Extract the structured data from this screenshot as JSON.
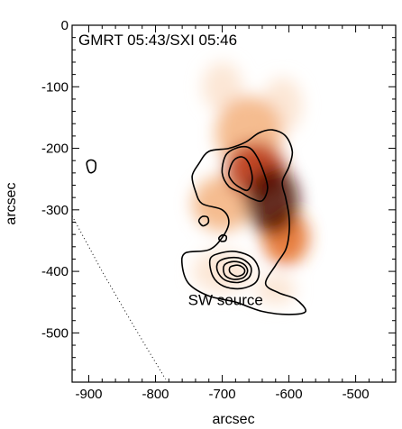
{
  "chart_data": {
    "type": "heatmap",
    "title": "GMRT 05:43/SXI 05:46",
    "xlabel": "arcsec",
    "ylabel": "arcsec",
    "xlim": [
      -925,
      -440
    ],
    "ylim": [
      -580,
      0
    ],
    "x_ticks": [
      -900,
      -800,
      -700,
      -600,
      -500
    ],
    "y_ticks": [
      0,
      -100,
      -200,
      -300,
      -400,
      -500
    ],
    "x_tick_labels": [
      "-900",
      "-800",
      "-700",
      "-600",
      "-500"
    ],
    "y_tick_labels": [
      "0",
      "-100",
      "-200",
      "-300",
      "-400",
      "-500"
    ],
    "annotations": [
      {
        "text": "SW source",
        "x": -695,
        "y": -455
      }
    ],
    "colormap": [
      "#ffffff",
      "#fbe3cf",
      "#f3b07d",
      "#e46a22",
      "#b8310b",
      "#4a0a00"
    ],
    "heatmap_blobs": [
      {
        "cx": -625,
        "cy": -285,
        "rx": 40,
        "ry": 55,
        "intensity": 1.0
      },
      {
        "cx": -650,
        "cy": -235,
        "rx": 45,
        "ry": 45,
        "intensity": 0.8
      },
      {
        "cx": -605,
        "cy": -345,
        "rx": 35,
        "ry": 45,
        "intensity": 0.65
      },
      {
        "cx": -660,
        "cy": -175,
        "rx": 50,
        "ry": 60,
        "intensity": 0.35
      },
      {
        "cx": -610,
        "cy": -130,
        "rx": 30,
        "ry": 45,
        "intensity": 0.25
      },
      {
        "cx": -700,
        "cy": -100,
        "rx": 30,
        "ry": 40,
        "intensity": 0.22
      },
      {
        "cx": -700,
        "cy": -290,
        "rx": 45,
        "ry": 45,
        "intensity": 0.3
      },
      {
        "cx": -700,
        "cy": -400,
        "rx": 45,
        "ry": 35,
        "intensity": 0.22
      },
      {
        "cx": -620,
        "cy": -430,
        "rx": 30,
        "ry": 25,
        "intensity": 0.18
      }
    ],
    "contours": [
      {
        "level": 1,
        "points": [
          [
            -735,
            -225
          ],
          [
            -720,
            -205
          ],
          [
            -690,
            -200
          ],
          [
            -665,
            -190
          ],
          [
            -645,
            -175
          ],
          [
            -625,
            -170
          ],
          [
            -605,
            -180
          ],
          [
            -595,
            -205
          ],
          [
            -600,
            -230
          ],
          [
            -610,
            -255
          ],
          [
            -605,
            -280
          ],
          [
            -600,
            -310
          ],
          [
            -600,
            -340
          ],
          [
            -605,
            -365
          ],
          [
            -620,
            -390
          ],
          [
            -635,
            -420
          ],
          [
            -615,
            -435
          ],
          [
            -590,
            -445
          ],
          [
            -575,
            -465
          ],
          [
            -600,
            -470
          ],
          [
            -640,
            -465
          ],
          [
            -680,
            -450
          ],
          [
            -720,
            -440
          ],
          [
            -750,
            -420
          ],
          [
            -760,
            -390
          ],
          [
            -755,
            -370
          ],
          [
            -720,
            -365
          ],
          [
            -700,
            -345
          ],
          [
            -690,
            -320
          ],
          [
            -700,
            -300
          ],
          [
            -730,
            -290
          ],
          [
            -740,
            -270
          ],
          [
            -745,
            -245
          ]
        ]
      },
      {
        "level": 2,
        "points": [
          [
            -700,
            -240
          ],
          [
            -695,
            -212
          ],
          [
            -680,
            -200
          ],
          [
            -662,
            -198
          ],
          [
            -650,
            -210
          ],
          [
            -638,
            -238
          ],
          [
            -632,
            -265
          ],
          [
            -640,
            -285
          ],
          [
            -655,
            -282
          ],
          [
            -672,
            -272
          ],
          [
            -690,
            -262
          ]
        ]
      },
      {
        "level": 3,
        "points": [
          [
            -690,
            -240
          ],
          [
            -683,
            -220
          ],
          [
            -670,
            -214
          ],
          [
            -660,
            -225
          ],
          [
            -655,
            -250
          ],
          [
            -662,
            -268
          ],
          [
            -676,
            -262
          ],
          [
            -686,
            -252
          ]
        ]
      },
      {
        "level": 1,
        "points": [
          [
            -718,
            -380
          ],
          [
            -702,
            -370
          ],
          [
            -678,
            -368
          ],
          [
            -655,
            -378
          ],
          [
            -645,
            -398
          ],
          [
            -650,
            -418
          ],
          [
            -672,
            -428
          ],
          [
            -698,
            -424
          ],
          [
            -714,
            -408
          ]
        ]
      },
      {
        "level": 2,
        "points": [
          [
            -706,
            -385
          ],
          [
            -690,
            -378
          ],
          [
            -670,
            -380
          ],
          [
            -657,
            -393
          ],
          [
            -660,
            -410
          ],
          [
            -676,
            -418
          ],
          [
            -696,
            -414
          ],
          [
            -707,
            -400
          ]
        ]
      },
      {
        "level": 3,
        "points": [
          [
            -697,
            -390
          ],
          [
            -683,
            -384
          ],
          [
            -668,
            -388
          ],
          [
            -662,
            -399
          ],
          [
            -668,
            -410
          ],
          [
            -683,
            -413
          ],
          [
            -696,
            -406
          ]
        ]
      },
      {
        "level": 4,
        "points": [
          [
            -688,
            -393
          ],
          [
            -676,
            -390
          ],
          [
            -667,
            -396
          ],
          [
            -668,
            -404
          ],
          [
            -678,
            -408
          ],
          [
            -688,
            -402
          ]
        ]
      },
      {
        "level": 1,
        "points": [
          [
            -735,
            -318
          ],
          [
            -730,
            -311
          ],
          [
            -722,
            -312
          ],
          [
            -721,
            -321
          ],
          [
            -729,
            -326
          ]
        ]
      },
      {
        "level": 1,
        "points": [
          [
            -705,
            -346
          ],
          [
            -700,
            -341
          ],
          [
            -694,
            -343
          ],
          [
            -695,
            -350
          ],
          [
            -702,
            -351
          ]
        ]
      },
      {
        "level": 1,
        "points": [
          [
            -903,
            -224
          ],
          [
            -897,
            -219
          ],
          [
            -890,
            -223
          ],
          [
            -891,
            -236
          ],
          [
            -899,
            -239
          ]
        ]
      }
    ],
    "limb_curve": [
      [
        -925,
        -310
      ],
      [
        -880,
        -400
      ],
      [
        -840,
        -475
      ],
      [
        -810,
        -530
      ],
      [
        -785,
        -575
      ]
    ]
  }
}
